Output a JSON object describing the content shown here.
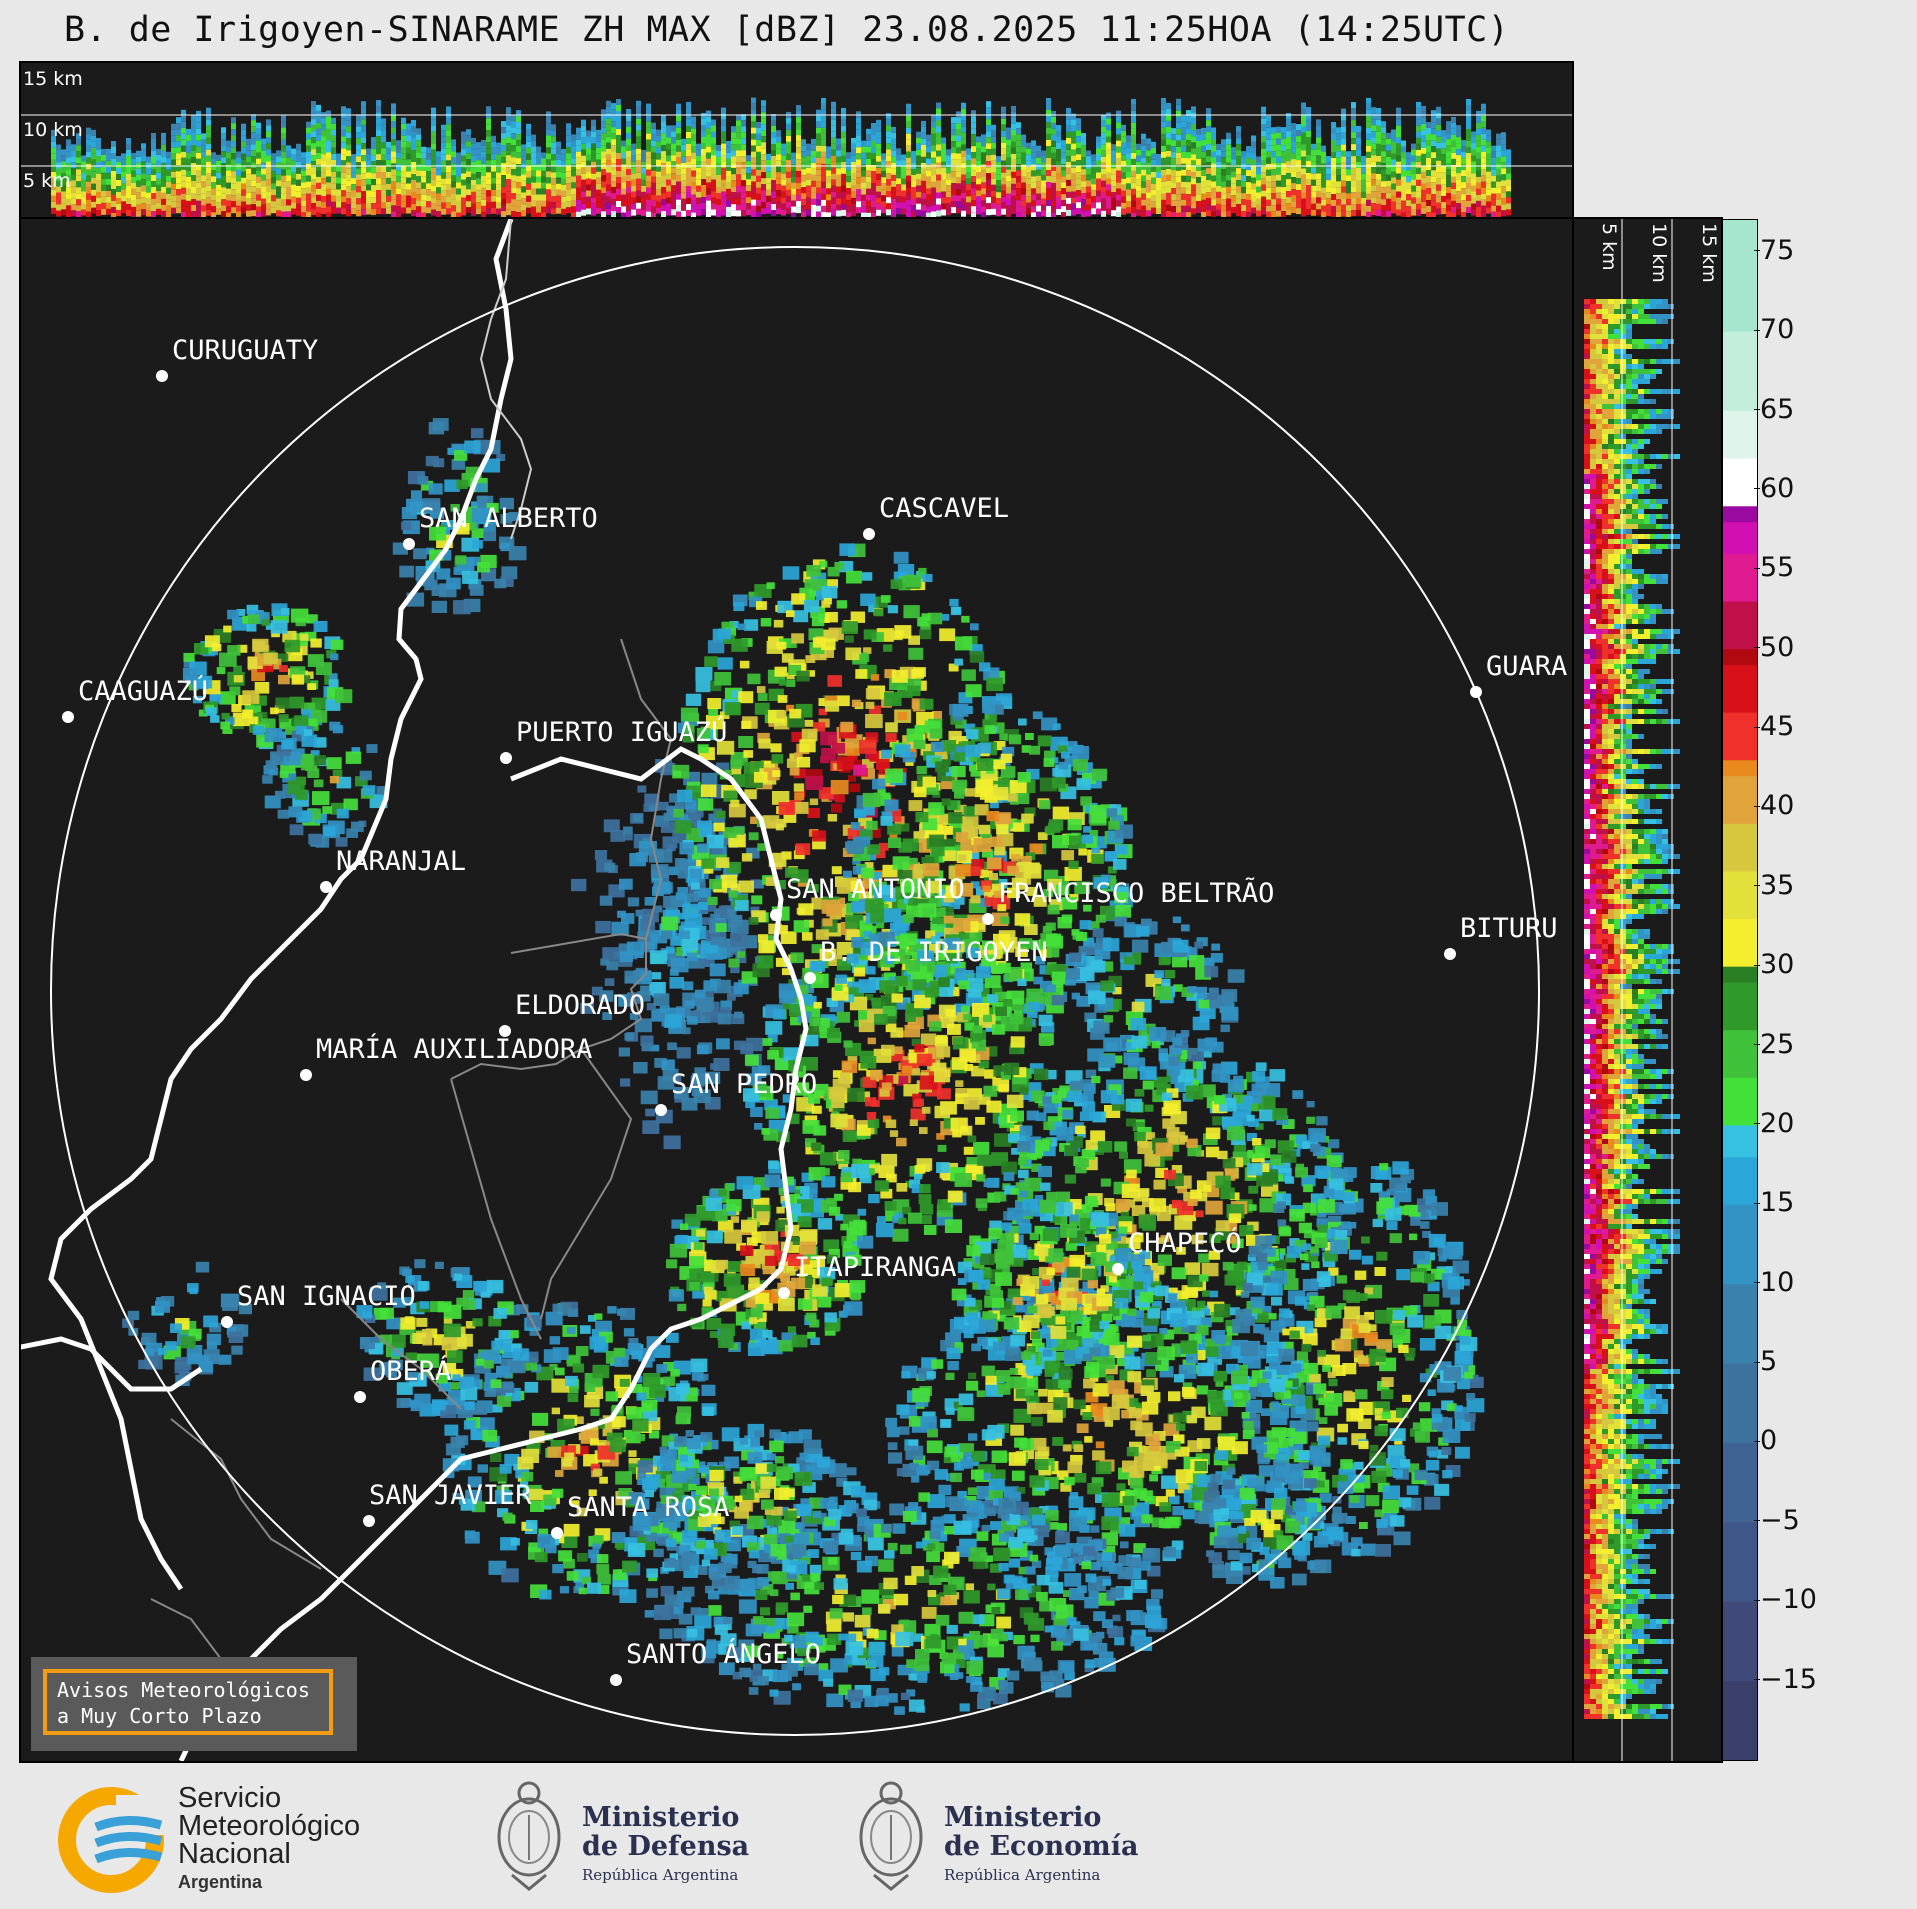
{
  "title": "B. de Irigoyen-SINARAME ZH MAX [dBZ] 23.08.2025 11:25HOA (14:25UTC)",
  "top_panel_labels": [
    "15 km",
    "10 km",
    "5 km"
  ],
  "side_panel_labels": [
    "5 km",
    "10 km",
    "15 km"
  ],
  "cities": [
    {
      "name": "CURUGUATY",
      "label": "CURUGUATY"
    },
    {
      "name": "SAN ALBERTO",
      "label": "SAN ALBERTO"
    },
    {
      "name": "CAAGUAZÚ",
      "label": "CAAGUAZÚ"
    },
    {
      "name": "CASCAVEL",
      "label": "CASCAVEL"
    },
    {
      "name": "GUARAPUAVA",
      "label": "GUARA"
    },
    {
      "name": "PUERTO IGUAZÚ",
      "label": "PUERTO IGUAZÚ"
    },
    {
      "name": "NARANJAL",
      "label": "NARANJAL"
    },
    {
      "name": "SAN ANTONIO",
      "label": "SAN ANTONIO"
    },
    {
      "name": "FRANCISCO BELTRÃO",
      "label": "FRANCISCO BELTRÃO"
    },
    {
      "name": "BITURUNA",
      "label": "BITURU"
    },
    {
      "name": "B. DE IRIGOYEN",
      "label": "B. DE IRIGOYEN"
    },
    {
      "name": "ELDORADO",
      "label": "ELDORADO"
    },
    {
      "name": "MARÍA AUXILIADORA",
      "label": "MARÍA AUXILIADORA"
    },
    {
      "name": "SAN PEDRO",
      "label": "SAN PEDRO"
    },
    {
      "name": "CHAPECÓ",
      "label": "CHAPECÓ"
    },
    {
      "name": "ITAPIRANGA",
      "label": "ITAPIRANGA"
    },
    {
      "name": "SAN IGNACIO",
      "label": "SAN IGNACIO"
    },
    {
      "name": "OBERÁ",
      "label": "OBERÁ"
    },
    {
      "name": "SAN JAVIER",
      "label": "SAN JAVIER"
    },
    {
      "name": "SANTA ROSA",
      "label": "SANTA ROSA"
    },
    {
      "name": "SANTO ÁNGELO",
      "label": "SANTO ÁNGELO"
    }
  ],
  "colorbar": {
    "ticks": [
      "75",
      "70",
      "65",
      "60",
      "55",
      "50",
      "45",
      "40",
      "35",
      "30",
      "25",
      "20",
      "15",
      "10",
      "5",
      "0",
      "−5",
      "−10",
      "−15"
    ],
    "range": [
      -20,
      77
    ]
  },
  "avisos": {
    "line1": "Avisos Meteorológicos",
    "line2": "a Muy Corto Plazo"
  },
  "logos": {
    "smn": {
      "line1": "Servicio",
      "line2": "Meteorológico",
      "line3": "Nacional",
      "line4": "Argentina"
    },
    "defensa": {
      "line1": "Ministerio",
      "line2": "de Defensa",
      "line3": "República Argentina"
    },
    "economia": {
      "line1": "Ministerio",
      "line2": "de Economía",
      "line3": "República Argentina"
    }
  }
}
